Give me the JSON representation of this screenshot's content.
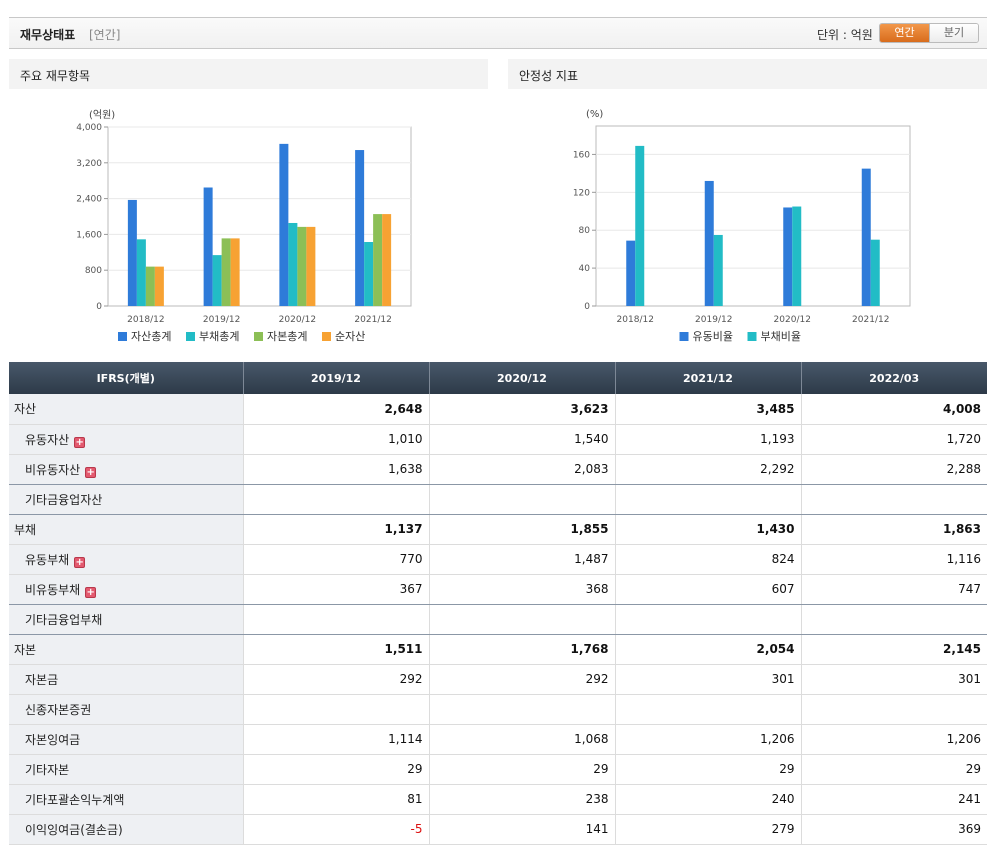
{
  "header": {
    "title": "재무상태표",
    "subtitle": "[연간]",
    "unit_label": "단위 : 억원",
    "toggle_annual": "연간",
    "toggle_quarter": "분기"
  },
  "colors": {
    "blue": "#2e7bd9",
    "teal": "#22bcc6",
    "green": "#8cbf56",
    "orange": "#f7a233"
  },
  "chart_data": [
    {
      "type": "bar",
      "title": "주요 재무항목",
      "ylabel": "(억원)",
      "categories": [
        "2018/12",
        "2019/12",
        "2020/12",
        "2021/12"
      ],
      "ylim": [
        0,
        4000
      ],
      "yticks": [
        "0",
        "800",
        "1,600",
        "2,400",
        "3,200",
        "4,000"
      ],
      "ytick_values": [
        0,
        800,
        1600,
        2400,
        3200,
        4000
      ],
      "legend_position": "bottom",
      "series": [
        {
          "name": "자산총계",
          "color": "#2e7bd9",
          "values": [
            2370,
            2648,
            3623,
            3485
          ]
        },
        {
          "name": "부채총계",
          "color": "#22bcc6",
          "values": [
            1490,
            1137,
            1855,
            1430
          ]
        },
        {
          "name": "자본총계",
          "color": "#8cbf56",
          "values": [
            880,
            1511,
            1768,
            2054
          ]
        },
        {
          "name": "순자산",
          "color": "#f7a233",
          "values": [
            880,
            1511,
            1768,
            2054
          ]
        }
      ]
    },
    {
      "type": "bar",
      "title": "안정성 지표",
      "ylabel": "(%)",
      "categories": [
        "2018/12",
        "2019/12",
        "2020/12",
        "2021/12"
      ],
      "ylim": [
        0,
        190
      ],
      "yticks": [
        "0",
        "40",
        "80",
        "120",
        "160"
      ],
      "ytick_values": [
        0,
        40,
        80,
        120,
        160
      ],
      "legend_position": "bottom",
      "series": [
        {
          "name": "유동비율",
          "color": "#2e7bd9",
          "values": [
            69,
            132,
            104,
            145
          ]
        },
        {
          "name": "부채비율",
          "color": "#22bcc6",
          "values": [
            169,
            75,
            105,
            70
          ]
        }
      ]
    }
  ],
  "table": {
    "headers": [
      "IFRS(개별)",
      "2019/12",
      "2020/12",
      "2021/12",
      "2022/03"
    ],
    "rows": [
      {
        "label": "자산",
        "values": [
          "2,648",
          "3,623",
          "3,485",
          "4,008"
        ]
      },
      {
        "label": "유동자산",
        "values": [
          "1,010",
          "1,540",
          "1,193",
          "1,720"
        ]
      },
      {
        "label": "비유동자산",
        "values": [
          "1,638",
          "2,083",
          "2,292",
          "2,288"
        ]
      },
      {
        "label": "기타금융업자산",
        "values": [
          "",
          "",
          "",
          ""
        ]
      },
      {
        "label": "부채",
        "values": [
          "1,137",
          "1,855",
          "1,430",
          "1,863"
        ]
      },
      {
        "label": "유동부채",
        "values": [
          "770",
          "1,487",
          "824",
          "1,116"
        ]
      },
      {
        "label": "비유동부채",
        "values": [
          "367",
          "368",
          "607",
          "747"
        ]
      },
      {
        "label": "기타금융업부채",
        "values": [
          "",
          "",
          "",
          ""
        ]
      },
      {
        "label": "자본",
        "values": [
          "1,511",
          "1,768",
          "2,054",
          "2,145"
        ]
      },
      {
        "label": "자본금",
        "values": [
          "292",
          "292",
          "301",
          "301"
        ]
      },
      {
        "label": "신종자본증권",
        "values": [
          "",
          "",
          "",
          ""
        ]
      },
      {
        "label": "자본잉여금",
        "values": [
          "1,114",
          "1,068",
          "1,206",
          "1,206"
        ]
      },
      {
        "label": "기타자본",
        "values": [
          "29",
          "29",
          "29",
          "29"
        ]
      },
      {
        "label": "기타포괄손익누계액",
        "values": [
          "81",
          "238",
          "240",
          "241"
        ]
      },
      {
        "label": "이익잉여금(결손금)",
        "values": [
          "-5",
          "141",
          "279",
          "369"
        ]
      }
    ]
  }
}
